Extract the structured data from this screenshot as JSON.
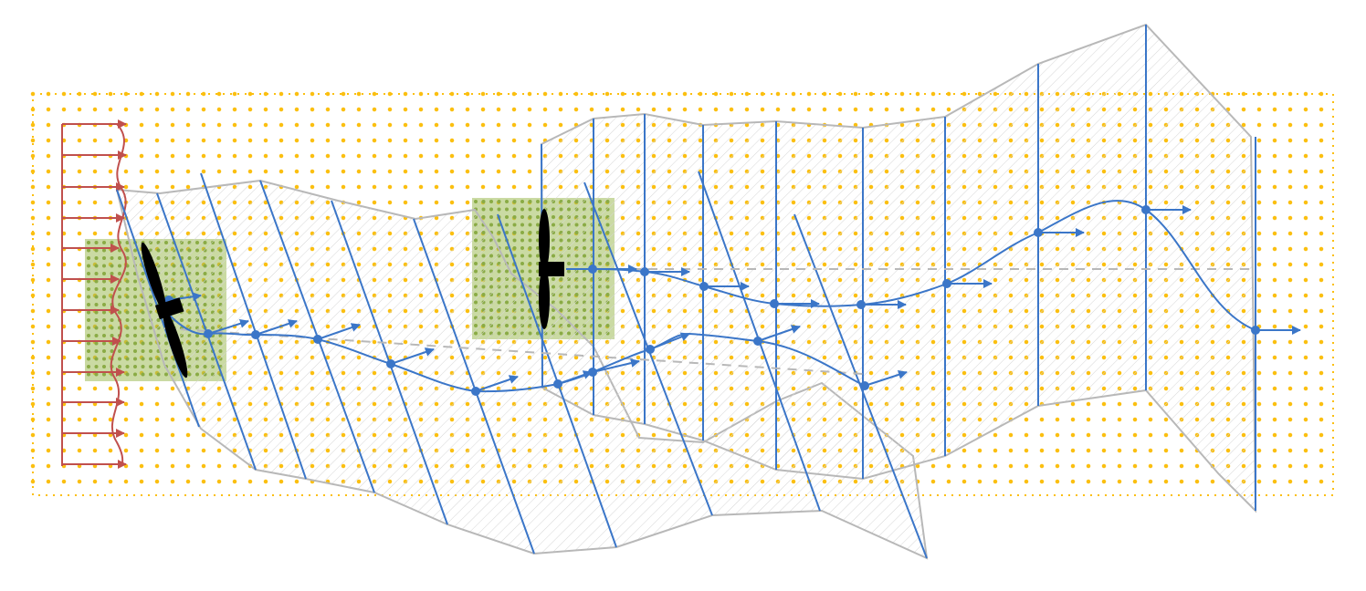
{
  "colors": {
    "background": "#ffffff",
    "domain_grid": "#fbbf10",
    "refined_grid": "#8aab45",
    "refined_fill": "#9ebb57",
    "inflow": "#c0504d",
    "wake_planes": "#3b76c8",
    "wake_hull": "#b8b8b8",
    "hatch": "#d6d6d6",
    "turbine": "#000000",
    "centerline": "#b8b8b8"
  },
  "icons": {
    "turbine_1": "wind-turbine-icon",
    "turbine_2": "wind-turbine-icon"
  },
  "layers": {
    "domain_grid": "background-grid",
    "refined_regions": "refined-grid-region",
    "inflow_profile": "inflow-velocity-profile",
    "wake_1": "wake-downstream-turbine-1",
    "wake_2": "wake-downstream-turbine-2"
  }
}
